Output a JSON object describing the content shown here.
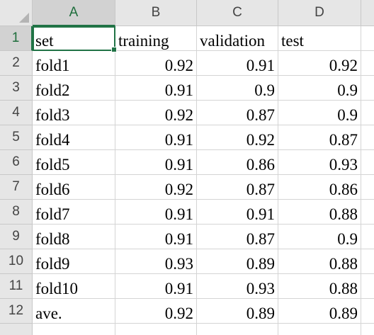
{
  "columns": [
    "A",
    "B",
    "C",
    "D"
  ],
  "rows": [
    "1",
    "2",
    "3",
    "4",
    "5",
    "6",
    "7",
    "8",
    "9",
    "10",
    "11",
    "12"
  ],
  "cells": [
    [
      "set",
      "training",
      "validation",
      "test"
    ],
    [
      "fold1",
      "0.92",
      "0.91",
      "0.92"
    ],
    [
      "fold2",
      "0.91",
      "0.9",
      "0.9"
    ],
    [
      "fold3",
      "0.92",
      "0.87",
      "0.9"
    ],
    [
      "fold4",
      "0.91",
      "0.92",
      "0.87"
    ],
    [
      "fold5",
      "0.91",
      "0.86",
      "0.93"
    ],
    [
      "fold6",
      "0.92",
      "0.87",
      "0.86"
    ],
    [
      "fold7",
      "0.91",
      "0.91",
      "0.88"
    ],
    [
      "fold8",
      "0.91",
      "0.87",
      "0.9"
    ],
    [
      "fold9",
      "0.93",
      "0.89",
      "0.88"
    ],
    [
      "fold10",
      "0.91",
      "0.93",
      "0.88"
    ],
    [
      "ave.",
      "0.92",
      "0.89",
      "0.89"
    ]
  ],
  "active_cell": "A1",
  "accent_color": "#217346"
}
